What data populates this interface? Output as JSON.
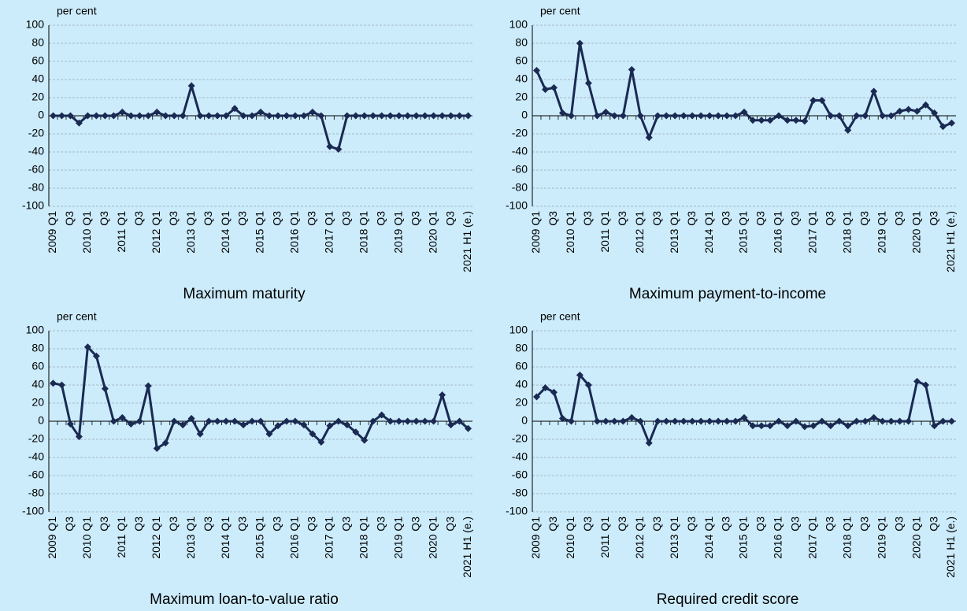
{
  "chart_data": [
    {
      "type": "line",
      "title": "Maximum maturity",
      "y_label": "per cent",
      "categories": [
        "2009 Q1",
        null,
        "Q3",
        null,
        "2010 Q1",
        null,
        "Q3",
        null,
        "2011 Q1",
        null,
        "Q3",
        null,
        "2012 Q1",
        null,
        "Q3",
        null,
        "2013 Q1",
        null,
        "Q3",
        null,
        "2014 Q1",
        null,
        "Q3",
        null,
        "2015 Q1",
        null,
        "Q3",
        null,
        "2016 Q1",
        null,
        "Q3",
        null,
        "2017 Q1",
        null,
        "Q3",
        null,
        "2018 Q1",
        null,
        "Q3",
        null,
        "2019 Q1",
        null,
        "Q3",
        null,
        "2020 Q1",
        null,
        "Q3",
        null,
        "2021 H1 (e.)"
      ],
      "values": [
        0,
        0,
        0,
        -8,
        0,
        0,
        0,
        0,
        4,
        0,
        0,
        0,
        4,
        0,
        0,
        0,
        33,
        0,
        0,
        0,
        0,
        8,
        0,
        0,
        4,
        0,
        0,
        0,
        0,
        0,
        4,
        0,
        -34,
        -37,
        0,
        0,
        0,
        0,
        0,
        0,
        0,
        0,
        0,
        0,
        0,
        0,
        0,
        0,
        0
      ],
      "color": "#1a2a52",
      "ylim": [
        -100,
        100
      ],
      "yticks": [
        -100,
        -80,
        -60,
        -40,
        -20,
        0,
        20,
        40,
        60,
        80,
        100
      ],
      "grid": true
    },
    {
      "type": "line",
      "title": "Maximum payment-to-income",
      "y_label": "per cent",
      "categories": [
        "2009 Q1",
        null,
        "Q3",
        null,
        "2010 Q1",
        null,
        "Q3",
        null,
        "2011 Q1",
        null,
        "Q3",
        null,
        "2012 Q1",
        null,
        "Q3",
        null,
        "2013 Q1",
        null,
        "Q3",
        null,
        "2014 Q1",
        null,
        "Q3",
        null,
        "2015 Q1",
        null,
        "Q3",
        null,
        "2016 Q1",
        null,
        "Q3",
        null,
        "2017 Q1",
        null,
        "Q3",
        null,
        "2018 Q1",
        null,
        "Q3",
        null,
        "2019 Q1",
        null,
        "Q3",
        null,
        "2020 Q1",
        null,
        "Q3",
        null,
        "2021 H1 (e.)"
      ],
      "values": [
        50,
        29,
        31,
        3,
        0,
        80,
        36,
        0,
        4,
        0,
        0,
        51,
        0,
        -24,
        0,
        0,
        0,
        0,
        0,
        0,
        0,
        0,
        0,
        0,
        4,
        -5,
        -5,
        -5,
        0,
        -5,
        -5,
        -6,
        17,
        17,
        0,
        0,
        -16,
        0,
        0,
        27,
        0,
        0,
        5,
        7,
        5,
        12,
        3,
        -12,
        -8
      ],
      "color": "#1a2a52",
      "ylim": [
        -100,
        100
      ],
      "yticks": [
        -100,
        -80,
        -60,
        -40,
        -20,
        0,
        20,
        40,
        60,
        80,
        100
      ],
      "grid": true
    },
    {
      "type": "line",
      "title": "Maximum loan-to-value ratio",
      "y_label": "per cent",
      "categories": [
        "2009 Q1",
        null,
        "Q3",
        null,
        "2010 Q1",
        null,
        "Q3",
        null,
        "2011 Q1",
        null,
        "Q3",
        null,
        "2012 Q1",
        null,
        "Q3",
        null,
        "2013 Q1",
        null,
        "Q3",
        null,
        "2014 Q1",
        null,
        "Q3",
        null,
        "2015 Q1",
        null,
        "Q3",
        null,
        "2016 Q1",
        null,
        "Q3",
        null,
        "2017 Q1",
        null,
        "Q3",
        null,
        "2018 Q1",
        null,
        "Q3",
        null,
        "2019 Q1",
        null,
        "Q3",
        null,
        "2020 Q1",
        null,
        "Q3",
        null,
        "2021 H1 (e.)"
      ],
      "values": [
        42,
        40,
        -3,
        -17,
        82,
        72,
        36,
        0,
        4,
        -3,
        0,
        39,
        -30,
        -24,
        0,
        -4,
        3,
        -14,
        0,
        0,
        0,
        0,
        -4,
        0,
        0,
        -14,
        -5,
        0,
        0,
        -4,
        -14,
        -23,
        -5,
        0,
        -4,
        -12,
        -21,
        0,
        7,
        0,
        0,
        0,
        0,
        0,
        0,
        29,
        -4,
        0,
        -8
      ],
      "color": "#1a2a52",
      "ylim": [
        -100,
        100
      ],
      "yticks": [
        -100,
        -80,
        -60,
        -40,
        -20,
        0,
        20,
        40,
        60,
        80,
        100
      ],
      "grid": true
    },
    {
      "type": "line",
      "title": "Required credit score",
      "y_label": "per cent",
      "categories": [
        "2009 Q1",
        null,
        "Q3",
        null,
        "2010 Q1",
        null,
        "Q3",
        null,
        "2011 Q1",
        null,
        "Q3",
        null,
        "2012 Q1",
        null,
        "Q3",
        null,
        "2013 Q1",
        null,
        "Q3",
        null,
        "2014 Q1",
        null,
        "Q3",
        null,
        "2015 Q1",
        null,
        "Q3",
        null,
        "2016 Q1",
        null,
        "Q3",
        null,
        "2017 Q1",
        null,
        "Q3",
        null,
        "2018 Q1",
        null,
        "Q3",
        null,
        "2019 Q1",
        null,
        "Q3",
        null,
        "2020 Q1",
        null,
        "Q3",
        null,
        "2021 H1 (e.)"
      ],
      "values": [
        27,
        37,
        32,
        3,
        0,
        51,
        40,
        0,
        0,
        0,
        0,
        4,
        0,
        -24,
        0,
        0,
        0,
        0,
        0,
        0,
        0,
        0,
        0,
        0,
        4,
        -5,
        -5,
        -5,
        0,
        -5,
        0,
        -6,
        -5,
        0,
        -5,
        0,
        -5,
        0,
        0,
        4,
        0,
        0,
        0,
        0,
        44,
        40,
        -5,
        0,
        0
      ],
      "color": "#1a2a52",
      "ylim": [
        -100,
        100
      ],
      "yticks": [
        -100,
        -80,
        -60,
        -40,
        -20,
        0,
        20,
        40,
        60,
        80,
        100
      ],
      "grid": true
    }
  ]
}
